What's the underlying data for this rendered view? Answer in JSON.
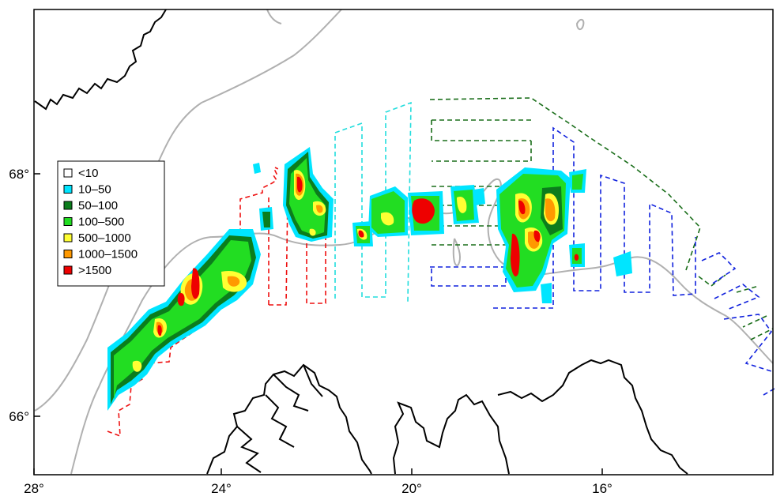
{
  "map": {
    "x_axis_ticks": [
      "28°",
      "24°",
      "20°",
      "16°"
    ],
    "y_axis_ticks": [
      "68°",
      "66°"
    ],
    "legend": {
      "items": [
        {
          "label": "<10",
          "color": "#ffffff"
        },
        {
          "label": "10–50",
          "color": "#00e5ff"
        },
        {
          "label": "50–100",
          "color": "#0b7d1c"
        },
        {
          "label": "100–500",
          "color": "#22dd22"
        },
        {
          "label": "500–1000",
          "color": "#ffff33"
        },
        {
          "label": "1000–1500",
          "color": "#ff9900"
        },
        {
          "label": ">1500",
          "color": "#ee0000"
        }
      ]
    },
    "colors": {
      "coastline": "#000000",
      "depth_contour": "#b0b0b0",
      "survey_red": "#ee1111",
      "survey_cyan": "#22dddd",
      "survey_green": "#1a6e1a",
      "survey_blue": "#1122dd"
    }
  }
}
